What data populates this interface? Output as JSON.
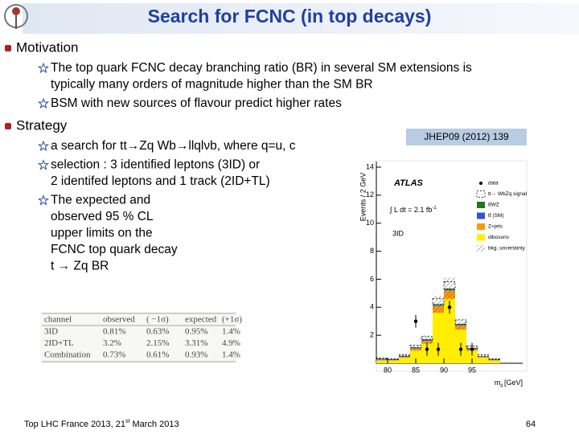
{
  "header": {
    "title": "Search for FCNC (in top decays)"
  },
  "sections": [
    {
      "heading": "Motivation",
      "items": [
        {
          "lines": [
            "The top quark FCNC decay branching ratio (BR) in several SM extensions is",
            "typically many orders of magnitude higher than the SM BR"
          ]
        },
        {
          "lines": [
            "BSM with new sources of flavour predict higher rates"
          ]
        }
      ]
    },
    {
      "heading": "Strategy",
      "items": [
        {
          "lines": [
            "a search for tt→Zq Wb→llqlνb, where q=u, c"
          ]
        },
        {
          "lines": [
            "selection : 3 identified leptons (3ID) or",
            "2 identifed leptons and 1 track (2ID+TL)"
          ]
        },
        {
          "lines": [
            "The expected and",
            "observed 95 % CL",
            "upper limits on the",
            "FCNC top quark decay",
            "t → Zq BR"
          ]
        }
      ]
    }
  ],
  "table": {
    "columns": [
      "channel",
      "observed",
      "( −1σ)",
      "expected",
      "(+1σ)"
    ],
    "rows": [
      [
        "3ID",
        "0.81%",
        "0.63%",
        "0.95%",
        "1.4%"
      ],
      [
        "2ID+TL",
        "3.2%",
        "2.15%",
        "3.31%",
        "4.9%"
      ],
      [
        "Combination",
        "0.73%",
        "0.61%",
        "0.93%",
        "1.4%"
      ]
    ]
  },
  "reference": "JHEP09 (2012) 139",
  "footer": {
    "text": "Top LHC France 2013, 21",
    "sup": "st",
    "rest": " March 2013"
  },
  "page_number": "64",
  "chart_data": {
    "type": "histogram",
    "y_label": "Events / 2 GeV",
    "x_label": "m",
    "x_label_sub": "ll",
    "x_label_unit": "[GeV]",
    "experiment": "ATLAS",
    "lumi": "∫ L dt = 2.1 fb",
    "lumi_sup": "-1",
    "channel": "3ID",
    "bins": [
      78,
      80,
      82,
      84,
      86,
      88,
      90,
      92,
      94,
      96,
      98,
      100
    ],
    "series": [
      {
        "name": "dibosons",
        "color": "#ffee00",
        "values": [
          0.2,
          0.2,
          0.4,
          0.9,
          1.4,
          3.6,
          4.6,
          2.4,
          0.9,
          0.4,
          0.2
        ]
      },
      {
        "name": "Z+jets",
        "color": "#ff9900",
        "values": [
          0.05,
          0.03,
          0.05,
          0.15,
          0.2,
          0.5,
          0.6,
          0.3,
          0.1,
          0.05,
          0.03
        ]
      },
      {
        "name": "tt̄ (SM)",
        "color": "#3355cc",
        "values": [
          0.05,
          0.03,
          0.05,
          0.05,
          0.06,
          0.05,
          0.05,
          0.05,
          0.05,
          0.03,
          0.03
        ]
      },
      {
        "name": "tt̄WZ",
        "color": "#227722",
        "values": [
          0.02,
          0.02,
          0.02,
          0.03,
          0.04,
          0.06,
          0.07,
          0.05,
          0.03,
          0.02,
          0.02
        ]
      },
      {
        "name": "tt→ WbZq signal",
        "color": "#000000",
        "values": [
          0.05,
          0.05,
          0.1,
          0.15,
          0.2,
          0.4,
          0.5,
          0.3,
          0.15,
          0.1,
          0.05
        ]
      }
    ],
    "uncertainty": {
      "name": "bkg. uncertainty",
      "color": "#777777",
      "values": [
        0.05,
        0.05,
        0.1,
        0.2,
        0.3,
        0.6,
        0.8,
        0.4,
        0.2,
        0.1,
        0.05
      ]
    },
    "data": {
      "name": "data",
      "color": "#000000",
      "x": [
        85,
        87,
        89,
        91,
        93,
        95
      ],
      "values": [
        3,
        1,
        1,
        4,
        1,
        1
      ]
    },
    "xlim": [
      78,
      104
    ],
    "xticks": [
      80,
      85,
      90,
      95
    ],
    "ylim": [
      0,
      14.4
    ],
    "yticks": [
      2,
      4,
      6,
      8,
      10,
      12,
      14
    ]
  }
}
